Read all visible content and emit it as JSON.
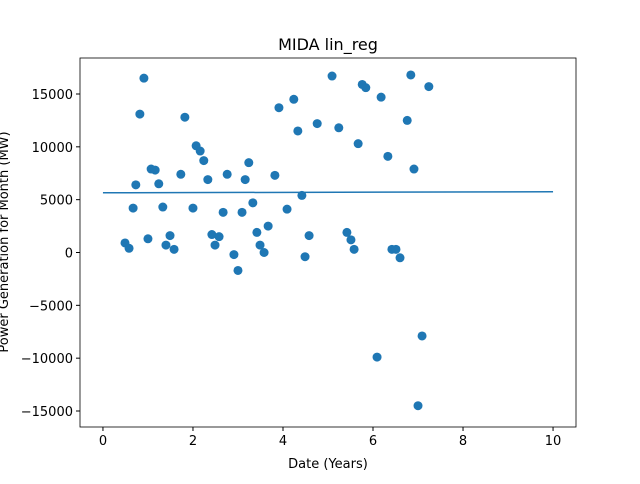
{
  "chart_data": {
    "type": "scatter",
    "title": "MIDA lin_reg",
    "x_label": "Date (Years)",
    "y_label": "Power Generation for Month (MW)",
    "xlim": [
      -0.51,
      10.51
    ],
    "ylim": [
      -16514,
      18406
    ],
    "xticks": [
      0,
      2,
      4,
      6,
      8,
      10
    ],
    "yticks": [
      {
        "value": -15000,
        "label": "−15000"
      },
      {
        "value": -10000,
        "label": "−10000"
      },
      {
        "value": -5000,
        "label": "−5000"
      },
      0,
      5000,
      10000,
      15000
    ],
    "grid": false,
    "series": [
      {
        "kind": "scatter",
        "color": "#1f77b4",
        "x": [
          0.49,
          0.58,
          0.67,
          0.73,
          0.82,
          0.91,
          1.0,
          1.07,
          1.16,
          1.24,
          1.33,
          1.4,
          1.49,
          1.58,
          1.73,
          1.82,
          2.0,
          2.07,
          2.16,
          2.24,
          2.33,
          2.42,
          2.49,
          2.58,
          2.67,
          2.76,
          2.91,
          3.0,
          3.09,
          3.16,
          3.24,
          3.33,
          3.42,
          3.49,
          3.58,
          3.67,
          3.82,
          3.91,
          4.09,
          4.24,
          4.33,
          4.42,
          4.49,
          4.58,
          4.76,
          5.09,
          5.24,
          5.42,
          5.51,
          5.58,
          5.67,
          5.76,
          5.84,
          6.09,
          6.18,
          6.33,
          6.42,
          6.51,
          6.6,
          6.76,
          6.84,
          6.91,
          7.0,
          7.09,
          7.24
        ],
        "values": [
          900,
          400,
          4200,
          6400,
          13100,
          16500,
          1300,
          7900,
          7800,
          6500,
          4300,
          700,
          1600,
          300,
          7400,
          12800,
          4200,
          10100,
          9600,
          8700,
          6900,
          1700,
          700,
          1500,
          3800,
          7400,
          -200,
          -1700,
          3800,
          6900,
          8500,
          4700,
          1900,
          700,
          0,
          2500,
          7300,
          13700,
          4100,
          14500,
          11500,
          5400,
          -400,
          1600,
          12200,
          16700,
          11800,
          1900,
          1200,
          300,
          10300,
          15900,
          15600,
          -9900,
          14700,
          9100,
          300,
          300,
          -500,
          12500,
          16800,
          7900,
          -14500,
          -7900,
          15700
        ]
      },
      {
        "kind": "line",
        "color": "#1f77b4",
        "x": [
          0,
          10
        ],
        "values": [
          5650,
          5750
        ]
      }
    ]
  }
}
